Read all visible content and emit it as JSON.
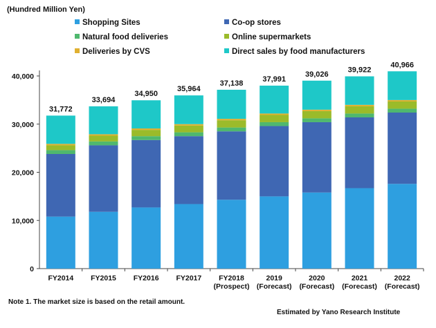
{
  "chart_data": {
    "type": "bar",
    "stacked": true,
    "unit_label": "(Hundred Million Yen)",
    "categories": [
      [
        "FY2014"
      ],
      [
        "FY2015"
      ],
      [
        "FY2016"
      ],
      [
        "FY2017"
      ],
      [
        "FY2018",
        "(Prospect)"
      ],
      [
        "2019",
        "(Forecast)"
      ],
      [
        "2020",
        "(Forecast)"
      ],
      [
        "2021",
        "(Forecast)"
      ],
      [
        "2022",
        "(Forecast)"
      ]
    ],
    "series": [
      {
        "name": "Shopping Sites",
        "color": "#2e9fe0",
        "values": [
          10800,
          11800,
          12700,
          13400,
          14300,
          15000,
          15800,
          16700,
          17600
        ]
      },
      {
        "name": "Co-op stores",
        "color": "#3f67b3",
        "values": [
          13000,
          13800,
          14000,
          14100,
          14200,
          14600,
          14600,
          14700,
          14800
        ]
      },
      {
        "name": "Natural food deliveries",
        "color": "#4fb86e",
        "values": [
          800,
          800,
          800,
          800,
          800,
          800,
          800,
          800,
          800
        ]
      },
      {
        "name": "Online supermarkets",
        "color": "#9bbb2a",
        "values": [
          1000,
          1200,
          1300,
          1400,
          1500,
          1500,
          1500,
          1500,
          1500
        ]
      },
      {
        "name": "Deliveries by CVS",
        "color": "#e0b030",
        "values": [
          300,
          300,
          300,
          300,
          300,
          300,
          300,
          300,
          300
        ]
      },
      {
        "name": "Direct sales by food manufacturers",
        "color": "#1ec8c8",
        "values": [
          5872,
          5794,
          5850,
          5964,
          6038,
          5791,
          6026,
          5922,
          5966
        ]
      }
    ],
    "totals": [
      "31,772",
      "33,694",
      "34,950",
      "35,964",
      "37,138",
      "37,991",
      "39,026",
      "39,922",
      "40,966"
    ],
    "ylim": [
      0,
      40000
    ],
    "yticks": [
      0,
      10000,
      20000,
      30000,
      40000
    ],
    "ytick_labels": [
      "0",
      "10,000",
      "20,000",
      "30,000",
      "40,000"
    ],
    "legend_position": "top"
  },
  "footer": {
    "note": "Note 1. The market size is based on the retail amount.",
    "source": "Estimated by Yano Research Institute"
  }
}
